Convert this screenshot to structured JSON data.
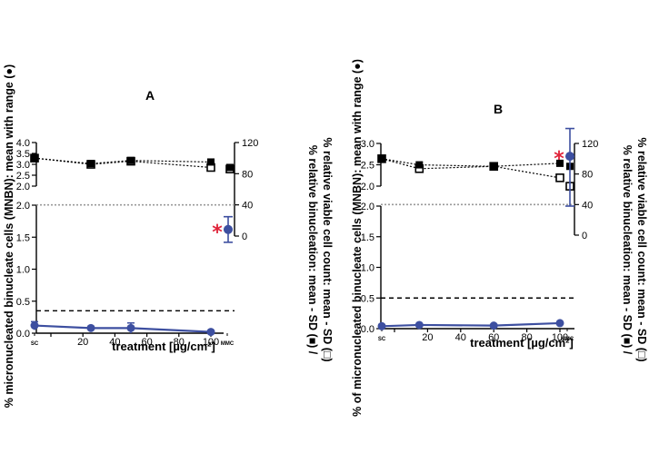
{
  "figure": {
    "left_axis_label": "% micronucleated binucleate cells (MNBN): mean with range (●)",
    "left_axis_label_b": "% of micronucleated binucleate cells (MNBN): mean with range (●)",
    "right_axis_label_line1": "% relative binucleation: mean - SD (■) /",
    "right_axis_label_line2": "% relative viable cell count: mean - SD (□)",
    "x_axis_label": "treatment [µg/cm²]"
  },
  "colors": {
    "mnbn": "#3d4fa0",
    "star": "#e0253b",
    "threshold": "#000000",
    "grid": "#9a9a9a"
  },
  "chart_data": [
    {
      "panel": "A",
      "type": "line",
      "x_label": "treatment [µg/cm²]",
      "x_ticks": [
        0,
        20,
        40,
        60,
        80,
        100
      ],
      "x_special_ticks": [
        "SC",
        "MMC"
      ],
      "left_ylim_lower": [
        0,
        2.0
      ],
      "left_ylim_upper": [
        2.0,
        4.0
      ],
      "left_ticks_lower": [
        0.0,
        0.5,
        1.0,
        1.5,
        2.0
      ],
      "left_ticks_upper": [
        2.0,
        2.5,
        3.0,
        3.5,
        4.0
      ],
      "right_ylim": [
        -20,
        120
      ],
      "right_ticks": [
        0,
        40,
        80,
        120
      ],
      "mnbn_threshold": 0.35,
      "relative_reference": 40,
      "series": [
        {
          "name": "MNBN mean with range",
          "points": [
            {
              "x": "SC",
              "y": 0.12,
              "low": 0.05,
              "high": 0.18
            },
            {
              "x": 25,
              "y": 0.08,
              "low": 0.06,
              "high": 0.1
            },
            {
              "x": 50,
              "y": 0.08,
              "low": 0.0,
              "high": 0.16
            },
            {
              "x": 100,
              "y": 0.02,
              "low": 0.0,
              "high": 0.04
            }
          ],
          "control": {
            "x": "MMC",
            "y": 1.62,
            "low": 1.42,
            "high": 1.82,
            "significant": true
          }
        },
        {
          "name": "relative binucleation",
          "points": [
            {
              "x": "SC",
              "y": 100
            },
            {
              "x": 25,
              "y": 93
            },
            {
              "x": 50,
              "y": 97
            },
            {
              "x": 100,
              "y": 95
            }
          ],
          "control": {
            "x": "MMC",
            "y": 88
          }
        },
        {
          "name": "relative viable cell count",
          "points": [
            {
              "x": "SC",
              "y": 100
            },
            {
              "x": 25,
              "y": 92
            },
            {
              "x": 50,
              "y": 96
            },
            {
              "x": 100,
              "y": 88
            }
          ],
          "control": {
            "x": "MMC",
            "y": 86
          }
        }
      ]
    },
    {
      "panel": "B",
      "type": "line",
      "x_label": "treatment [µg/cm²]",
      "x_ticks": [
        0,
        20,
        40,
        60,
        80,
        100
      ],
      "x_special_ticks": [
        "SC",
        "MMC"
      ],
      "left_ylim_lower": [
        0,
        2.0
      ],
      "left_ylim_upper": [
        2.0,
        3.0
      ],
      "left_ticks_lower": [
        0.0,
        0.5,
        1.0,
        1.5,
        2.0
      ],
      "left_ticks_upper": [
        2.0,
        2.5,
        3.0
      ],
      "right_ylim": [
        -20,
        120
      ],
      "right_ticks": [
        0,
        40,
        80,
        120
      ],
      "mnbn_threshold": 0.5,
      "relative_reference": 40,
      "series": [
        {
          "name": "MNBN mean with range",
          "points": [
            {
              "x": "SC",
              "y": 0.04,
              "low": 0.02,
              "high": 0.06
            },
            {
              "x": 15,
              "y": 0.06,
              "low": 0.04,
              "high": 0.08
            },
            {
              "x": 60,
              "y": 0.05,
              "low": 0.03,
              "high": 0.07
            },
            {
              "x": 100,
              "y": 0.09,
              "low": 0.07,
              "high": 0.11
            }
          ],
          "control": {
            "x": "MMC",
            "y": 2.7,
            "low": 2.0,
            "high": 3.35,
            "significant": true
          }
        },
        {
          "name": "relative binucleation",
          "points": [
            {
              "x": "SC",
              "y": 100
            },
            {
              "x": 15,
              "y": 92
            },
            {
              "x": 60,
              "y": 90
            },
            {
              "x": 100,
              "y": 94
            }
          ],
          "control": {
            "x": "MMC",
            "y": 90
          }
        },
        {
          "name": "relative viable cell count",
          "points": [
            {
              "x": "SC",
              "y": 100
            },
            {
              "x": 15,
              "y": 87
            },
            {
              "x": 60,
              "y": 90
            },
            {
              "x": 100,
              "y": 75
            }
          ],
          "control": {
            "x": "MMC",
            "y": 64
          }
        }
      ]
    }
  ]
}
